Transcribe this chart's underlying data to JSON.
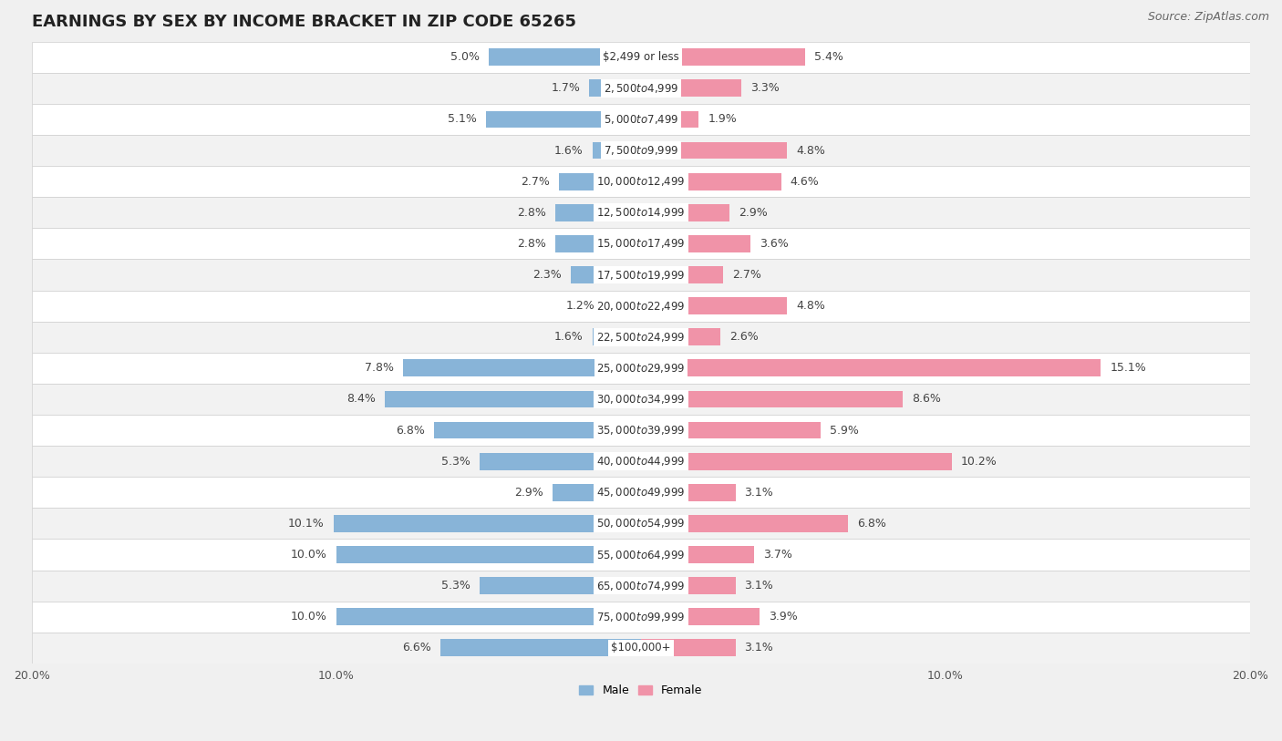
{
  "title": "EARNINGS BY SEX BY INCOME BRACKET IN ZIP CODE 65265",
  "source": "Source: ZipAtlas.com",
  "categories": [
    "$2,499 or less",
    "$2,500 to $4,999",
    "$5,000 to $7,499",
    "$7,500 to $9,999",
    "$10,000 to $12,499",
    "$12,500 to $14,999",
    "$15,000 to $17,499",
    "$17,500 to $19,999",
    "$20,000 to $22,499",
    "$22,500 to $24,999",
    "$25,000 to $29,999",
    "$30,000 to $34,999",
    "$35,000 to $39,999",
    "$40,000 to $44,999",
    "$45,000 to $49,999",
    "$50,000 to $54,999",
    "$55,000 to $64,999",
    "$65,000 to $74,999",
    "$75,000 to $99,999",
    "$100,000+"
  ],
  "male_values": [
    5.0,
    1.7,
    5.1,
    1.6,
    2.7,
    2.8,
    2.8,
    2.3,
    1.2,
    1.6,
    7.8,
    8.4,
    6.8,
    5.3,
    2.9,
    10.1,
    10.0,
    5.3,
    10.0,
    6.6
  ],
  "female_values": [
    5.4,
    3.3,
    1.9,
    4.8,
    4.6,
    2.9,
    3.6,
    2.7,
    4.8,
    2.6,
    15.1,
    8.6,
    5.9,
    10.2,
    3.1,
    6.8,
    3.7,
    3.1,
    3.9,
    3.1
  ],
  "male_color": "#88b4d8",
  "female_color": "#f093a8",
  "row_color_odd": "#f5f5f5",
  "row_color_even": "#e8e8e8",
  "row_border_color": "#d8d8d8",
  "bg_color": "#f0f0f0",
  "xlim": 20.0,
  "bar_height": 0.55,
  "legend_labels": [
    "Male",
    "Female"
  ],
  "title_fontsize": 13,
  "source_fontsize": 9,
  "label_fontsize": 9,
  "tick_fontsize": 9,
  "cat_fontsize": 8.5
}
